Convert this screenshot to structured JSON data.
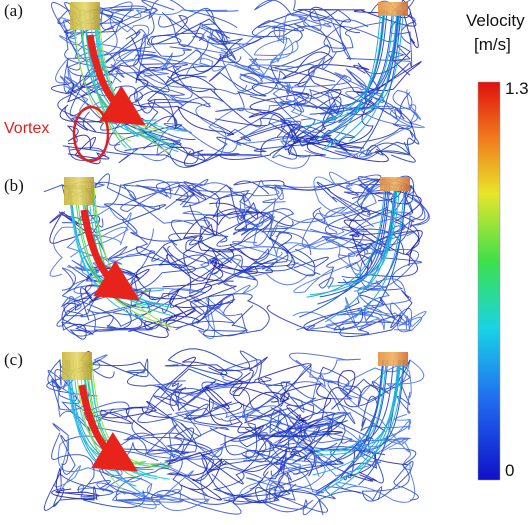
{
  "panels": [
    {
      "label": "(a)"
    },
    {
      "label": "(b)"
    },
    {
      "label": "(c)"
    }
  ],
  "annotation": "Vortex",
  "colorbar": {
    "title": [
      "Velocity",
      "[m/s]"
    ],
    "max": 1.3,
    "min": 0
  }
}
